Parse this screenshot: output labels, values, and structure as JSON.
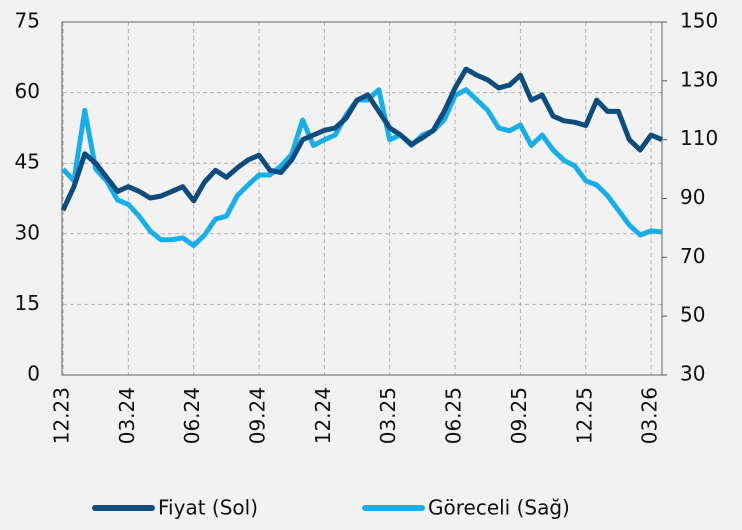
{
  "chart_data": {
    "type": "line",
    "categories": [
      "12.23",
      null,
      null,
      null,
      null,
      null,
      "03.24",
      null,
      null,
      null,
      null,
      null,
      "06.24",
      null,
      null,
      null,
      null,
      null,
      "09.24",
      null,
      null,
      null,
      null,
      null,
      "12.24",
      null,
      null,
      null,
      null,
      null,
      "03.25",
      null,
      null,
      null,
      null,
      null,
      "06.25",
      null,
      null,
      null,
      null,
      null,
      "09.25",
      null,
      null,
      null,
      null,
      null,
      "12.25",
      null,
      null,
      null,
      null,
      null,
      "03.26",
      null
    ],
    "series": [
      {
        "name": "Fiyat (Sol)",
        "color": "#0d4c7d",
        "values": [
          35,
          40,
          47,
          45,
          42,
          39,
          40,
          39,
          37.6,
          38,
          39,
          40,
          37,
          41,
          43.5,
          42,
          44,
          45.7,
          46.7,
          43.5,
          43,
          45.7,
          50,
          51,
          52,
          52.5,
          54.6,
          58.4,
          59.5,
          56,
          52.5,
          51,
          49,
          50.4,
          52,
          56,
          61,
          65,
          63.7,
          62.7,
          61,
          61.6,
          63.7,
          58.4,
          59.5,
          55,
          54,
          53.7,
          53,
          58.4,
          56,
          56,
          50,
          47.8,
          51,
          50
        ]
      },
      {
        "name": "Göreceli (Sağ)",
        "color": "#1aaee8",
        "axis": "y2",
        "values": [
          100,
          96,
          120,
          100,
          96,
          89.5,
          88,
          84,
          79,
          76,
          76,
          76.6,
          74,
          77.6,
          83,
          84,
          91,
          94.6,
          98,
          98,
          101,
          105,
          116.7,
          108,
          110,
          111.6,
          118.4,
          123.5,
          123.5,
          127,
          110,
          111.6,
          108,
          111.6,
          113,
          116.7,
          125,
          127,
          123.5,
          120,
          114,
          113,
          115,
          108,
          111.6,
          106.5,
          103,
          101,
          96,
          94.6,
          91,
          86,
          81,
          77.6,
          79,
          78.6
        ]
      }
    ],
    "ylim": [
      0,
      75
    ],
    "yticks": [
      0,
      15,
      30,
      45,
      60,
      75
    ],
    "y2lim": [
      30,
      150
    ],
    "y2ticks": [
      30,
      50,
      70,
      90,
      110,
      130,
      150
    ],
    "grid": true,
    "legend": "bottom"
  }
}
